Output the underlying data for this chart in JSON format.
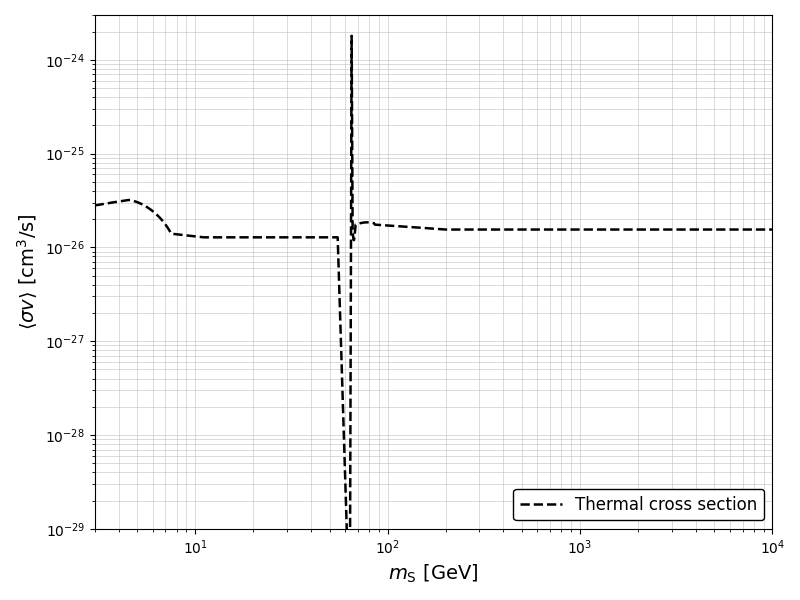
{
  "xlabel": "$m_{\\mathrm{S}}$ [GeV]",
  "ylabel": "$\\langle \\sigma v \\rangle$ [cm$^3$/s]",
  "xlim": [
    3.0,
    10000.0
  ],
  "ylim": [
    1e-29,
    3e-24
  ],
  "legend_label": "Thermal cross section",
  "line_color": "#000000",
  "line_style": "--",
  "line_width": 1.8,
  "figsize": [
    8.0,
    6.0
  ],
  "dpi": 100,
  "grid_color": "#c0c0c0",
  "grid_alpha": 0.8
}
